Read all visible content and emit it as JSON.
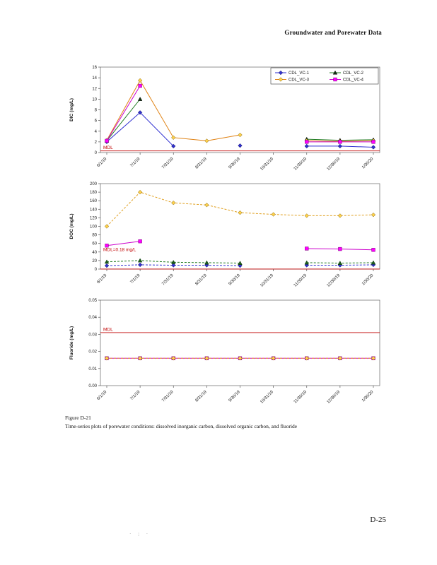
{
  "page": {
    "header": "Groundwater and Porewater Data",
    "page_number": "D-25",
    "footer_marks": "· ; ·"
  },
  "caption": {
    "figure_label": "Figure D-21",
    "description": "Time-series plots of porewater conditions: dissolved inorganic carbon, dissolved organic carbon, and fluoride"
  },
  "chart_data": [
    {
      "type": "line",
      "title": "",
      "ylabel": "DIC (mg/L)",
      "ylim": [
        0,
        16
      ],
      "ytick_step": 2,
      "ytick_decimals": 0,
      "legend": true,
      "legend_position": "top-right-inside",
      "grid": false,
      "x_labels": [
        "6/1/19",
        "7/1/19",
        "7/31/19",
        "8/31/19",
        "9/30/19",
        "10/31/19",
        "11/30/19",
        "12/30/19",
        "1/30/20"
      ],
      "mdl": {
        "label": "MDL",
        "value": 0.3,
        "color": "#c00000"
      },
      "series": [
        {
          "name": "CDL_VC-1",
          "marker": "diamond",
          "line_color": "#2b2bd0",
          "fill": "#3333cc",
          "stroke": "#000060",
          "dash": false,
          "values": [
            2.0,
            7.5,
            1.2,
            null,
            1.3,
            null,
            1.2,
            1.2,
            1.0
          ]
        },
        {
          "name": "CDL_VC-2",
          "marker": "triangle",
          "line_color": "#1f7a1f",
          "fill": "#113311",
          "stroke": "#000000",
          "dash": false,
          "values": [
            2.2,
            10.0,
            null,
            null,
            null,
            null,
            2.5,
            2.3,
            2.4
          ]
        },
        {
          "name": "CDL_VC-3",
          "marker": "diamond",
          "line_color": "#e08214",
          "fill": "#ffd24d",
          "stroke": "#7a5a00",
          "dash": false,
          "values": [
            2.3,
            13.5,
            2.8,
            2.2,
            3.3,
            null,
            2.2,
            2.1,
            2.2
          ]
        },
        {
          "name": "CDL_VC-4",
          "marker": "square",
          "line_color": "#cc00cc",
          "fill": "#ff00ff",
          "stroke": "#7a007a",
          "dash": false,
          "values": [
            2.2,
            12.5,
            null,
            null,
            null,
            null,
            2.0,
            2.0,
            2.0
          ]
        }
      ]
    },
    {
      "type": "line",
      "title": "",
      "ylabel": "DOC (mg/L)",
      "ylim": [
        0,
        200
      ],
      "ytick_step": 20,
      "ytick_decimals": 0,
      "legend": false,
      "grid": false,
      "x_labels": [
        "6/1/19",
        "7/1/19",
        "7/31/19",
        "8/31/19",
        "9/30/19",
        "10/31/19",
        "11/30/19",
        "12/30/19",
        "1/30/20"
      ],
      "mdl": {
        "label": "MDL=0.18 mg/L",
        "value": 0.18,
        "label_at": 38,
        "color": "#c00000"
      },
      "series": [
        {
          "name": "CDL_VC-1",
          "marker": "diamond",
          "line_color": "#2b2bd0",
          "fill": "#3333cc",
          "stroke": "#000060",
          "dash": true,
          "values": [
            8,
            10,
            9,
            9,
            8,
            null,
            9,
            9,
            10
          ]
        },
        {
          "name": "CDL_VC-2",
          "marker": "triangle",
          "line_color": "#1f7a1f",
          "fill": "#1f5c1f",
          "stroke": "#003300",
          "dash": true,
          "values": [
            17,
            20,
            16,
            15,
            14,
            null,
            15,
            14,
            15
          ]
        },
        {
          "name": "CDL_VC-4",
          "marker": "square",
          "line_color": "#cc00cc",
          "fill": "#ff00ff",
          "stroke": "#7a007a",
          "dash": false,
          "values": [
            55,
            65,
            null,
            null,
            null,
            null,
            48,
            47,
            45
          ]
        },
        {
          "name": "CDL_VC-3",
          "marker": "diamond",
          "line_color": "#e0a020",
          "fill": "#ffd24d",
          "stroke": "#7a5a00",
          "dash": true,
          "values": [
            100,
            180,
            155,
            150,
            132,
            128,
            125,
            125,
            127
          ]
        }
      ]
    },
    {
      "type": "line",
      "title": "",
      "ylabel": "Fluoride (mg/L)",
      "ylim": [
        0,
        0.05
      ],
      "ytick_step": 0.01,
      "ytick_decimals": 2,
      "legend": false,
      "grid": false,
      "x_labels": [
        "6/1/19",
        "7/1/19",
        "7/31/19",
        "8/31/19",
        "9/30/19",
        "10/31/19",
        "11/30/19",
        "12/30/19",
        "1/30/20"
      ],
      "mdl": {
        "label": "MDL",
        "value": 0.031,
        "color": "#c00000"
      },
      "series": [
        {
          "name": "CDL_VC-4",
          "marker": "square",
          "line_color": "#cc00cc",
          "fill": "#ff00ff",
          "stroke": "#7a007a",
          "dash": false,
          "values": [
            0.016,
            0.016,
            0.016,
            0.016,
            0.016,
            0.016,
            0.016,
            0.016,
            0.016
          ]
        },
        {
          "name": "CDL_VC-3",
          "marker": "diamond",
          "line_color": "#e0a020",
          "fill": "#ffd24d",
          "stroke": "#7a5a00",
          "dash": true,
          "values": [
            0.016,
            0.016,
            0.016,
            0.016,
            0.016,
            0.016,
            0.016,
            0.016,
            0.016
          ]
        }
      ]
    }
  ]
}
